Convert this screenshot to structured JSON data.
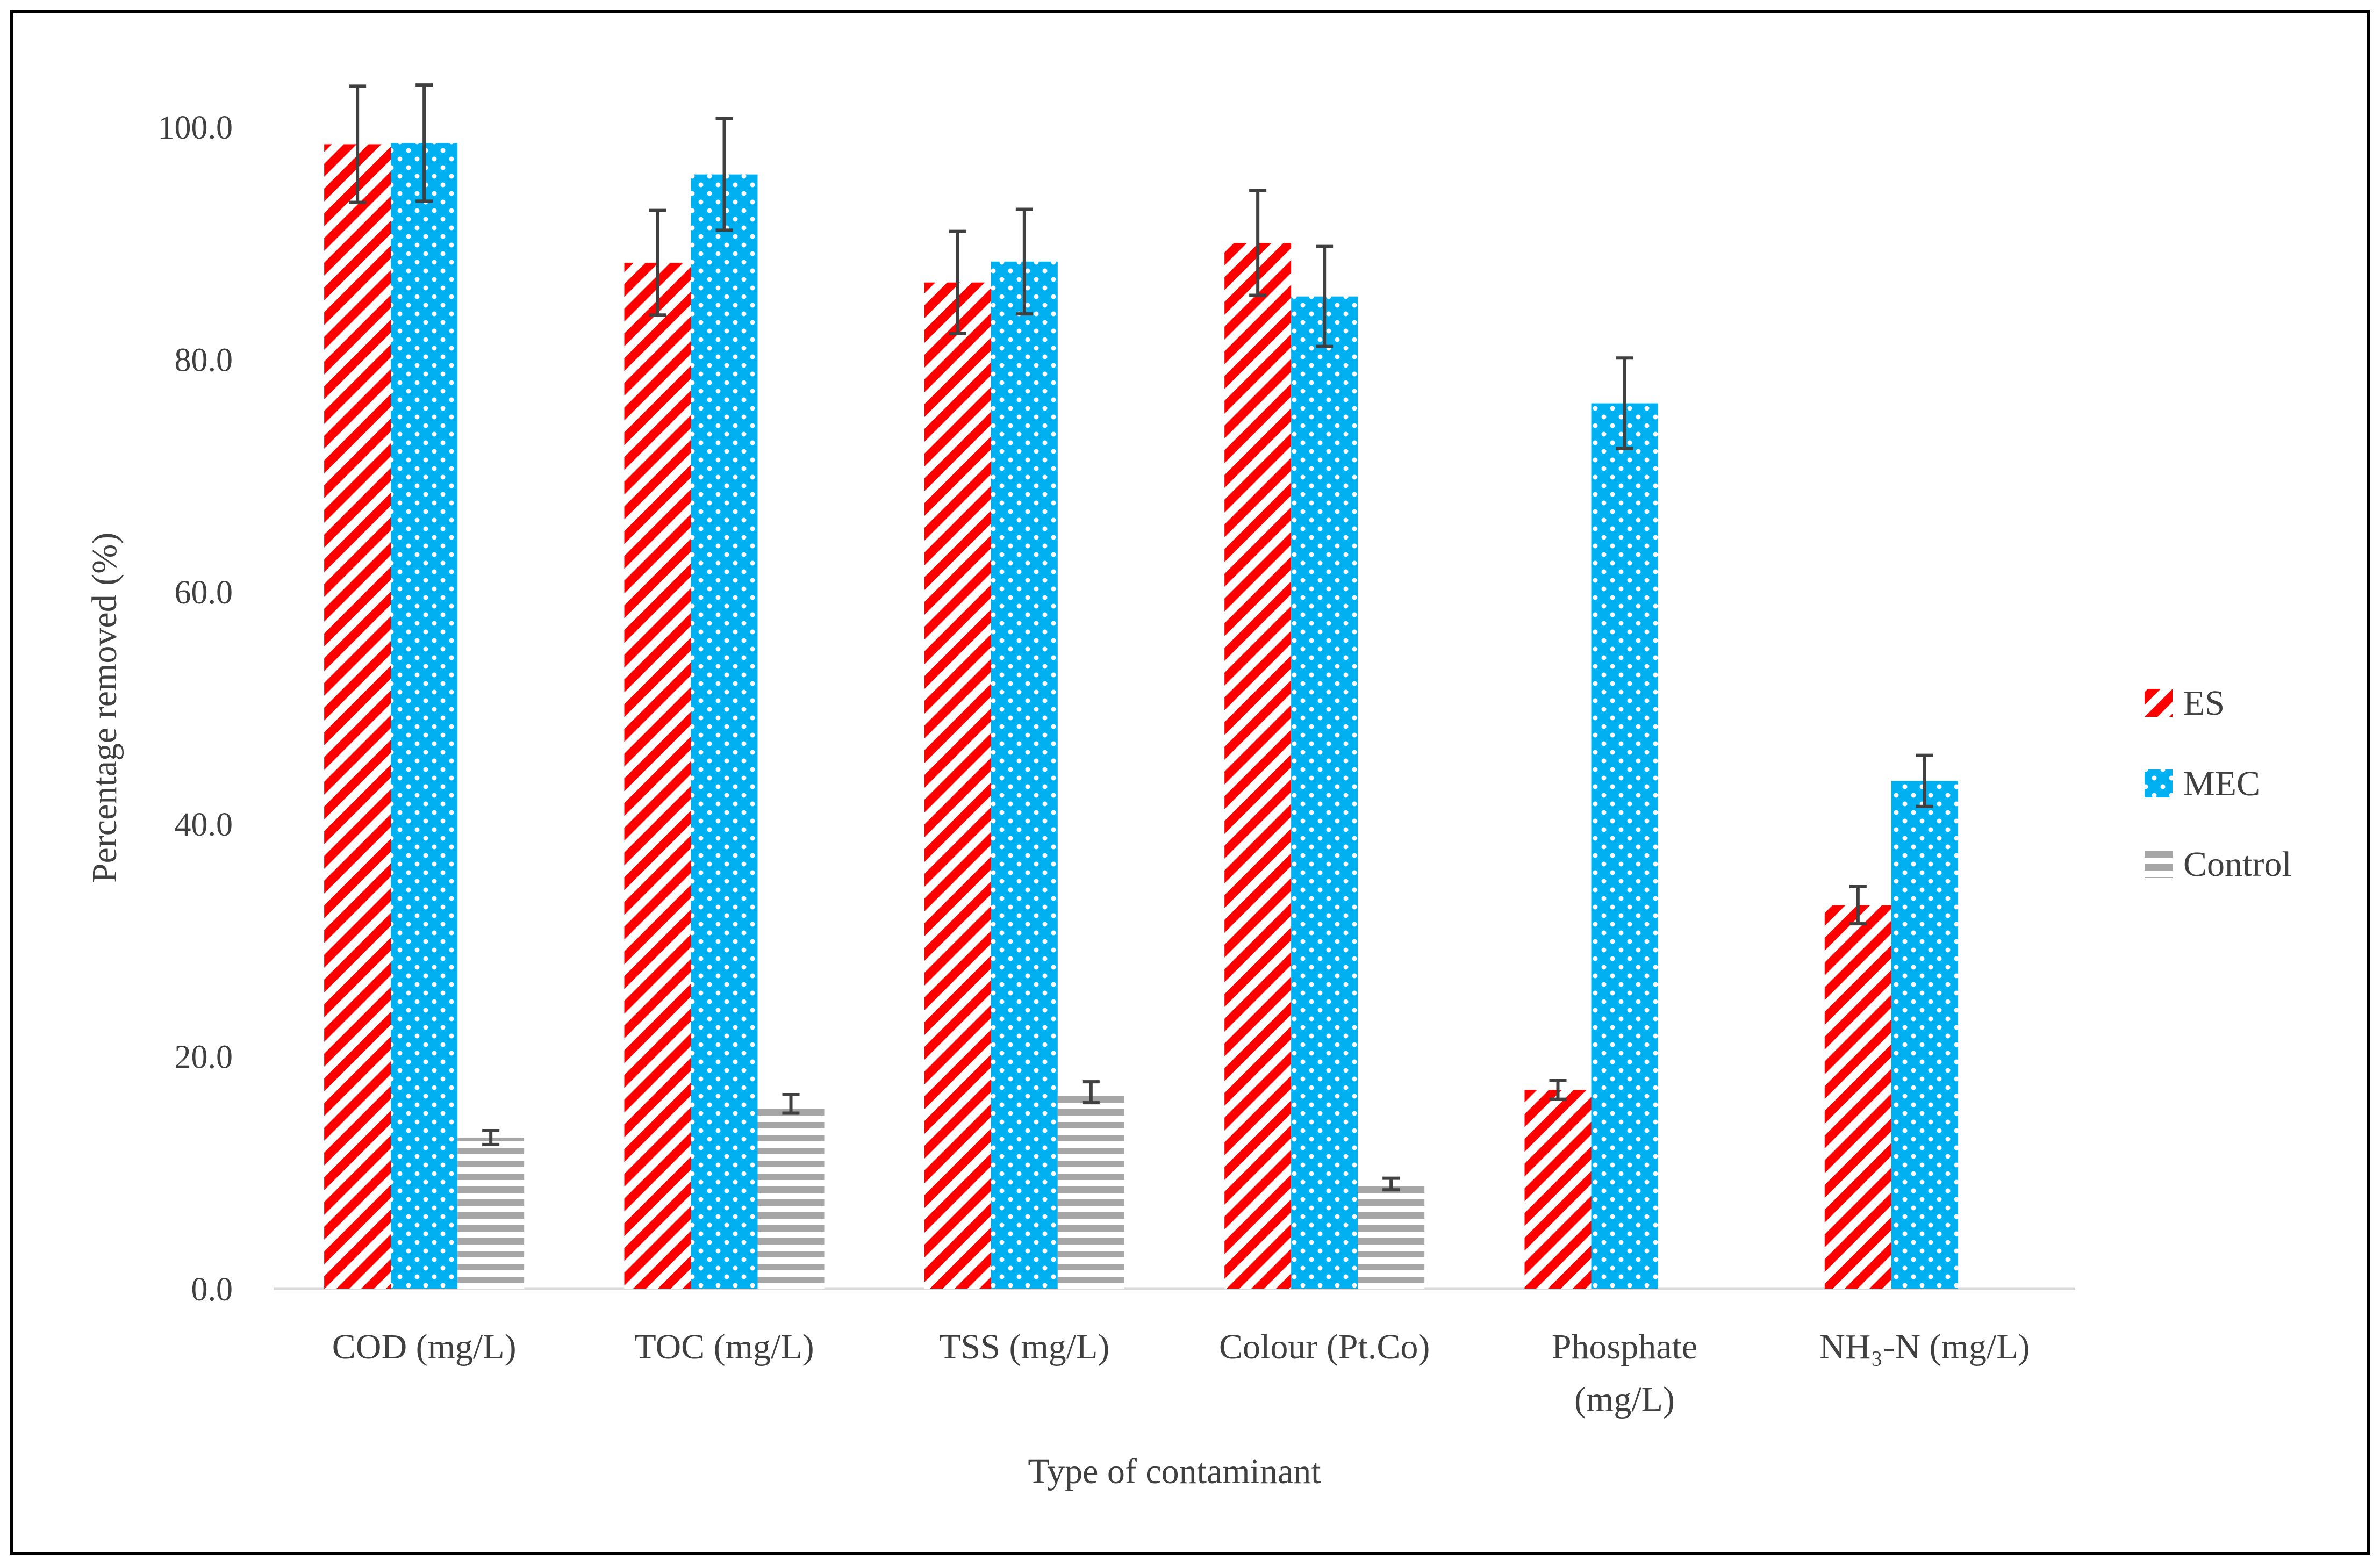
{
  "chart_data": {
    "type": "bar",
    "title": "",
    "xlabel": "Type of contaminant",
    "ylabel": "Percentage removed (%)",
    "ylim": [
      0,
      100
    ],
    "yticks": [
      0,
      20,
      40,
      60,
      80,
      100
    ],
    "ytick_labels": [
      "0.0",
      "20.0",
      "40.0",
      "60.0",
      "80.0",
      "100.0"
    ],
    "categories": [
      [
        "COD (mg/L)"
      ],
      [
        "TOC (mg/L)"
      ],
      [
        "TSS (mg/L)"
      ],
      [
        "Colour (Pt.Co)"
      ],
      [
        "Phosphate",
        "(mg/L)"
      ],
      [
        "NH₃-N (mg/L)"
      ]
    ],
    "series": [
      {
        "name": "ES",
        "values": [
          98.5,
          88.3,
          86.6,
          90.0,
          17.1,
          33.0
        ],
        "errors": [
          5.0,
          4.5,
          4.4,
          4.5,
          0.8,
          1.6
        ],
        "color": "#ff0000",
        "pattern": "diagonal"
      },
      {
        "name": "MEC",
        "values": [
          98.6,
          95.9,
          88.4,
          85.4,
          76.2,
          43.7
        ],
        "errors": [
          5.0,
          4.8,
          4.5,
          4.3,
          3.9,
          2.2
        ],
        "color": "#00b0f0",
        "pattern": "checker"
      },
      {
        "name": "Control",
        "values": [
          13.0,
          15.9,
          16.9,
          9.0,
          null,
          null
        ],
        "errors": [
          0.6,
          0.8,
          0.9,
          0.5,
          null,
          null
        ],
        "color": "#a6a6a6",
        "pattern": "horizontal"
      }
    ],
    "legend_position": "right",
    "grid": false
  }
}
